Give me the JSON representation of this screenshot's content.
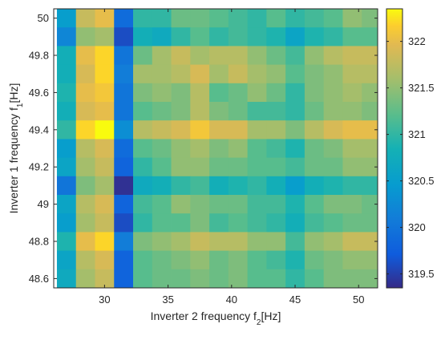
{
  "chart_data": {
    "type": "heatmap",
    "title": "",
    "xlabel": "Inverter 2 frequency f",
    "xlabel_subscript": "2",
    "xlabel_unit": "[Hz]",
    "ylabel": "Inverter 1 frequency f",
    "ylabel_subscript": "1",
    "ylabel_unit": "[Hz]",
    "xlim": [
      26,
      51.5
    ],
    "ylim": [
      48.55,
      50.05
    ],
    "x_ticks": [
      30,
      35,
      40,
      45,
      50
    ],
    "y_ticks": [
      48.6,
      48.8,
      49,
      49.2,
      49.4,
      49.6,
      49.8,
      50
    ],
    "colorbar": {
      "colormap": "parula",
      "range": [
        319.35,
        322.35
      ],
      "ticks": [
        319.5,
        320,
        320.5,
        321,
        321.5,
        322
      ]
    },
    "x_centers": [
      27,
      28.5,
      30,
      31.5,
      33,
      34.5,
      36,
      37.5,
      39,
      40.5,
      42,
      43.5,
      45,
      46.5,
      48,
      49.5,
      51
    ],
    "y_centers": [
      50,
      49.9,
      49.8,
      49.7,
      49.6,
      49.5,
      49.4,
      49.3,
      49.2,
      49.1,
      49,
      48.9,
      48.8,
      48.7,
      48.6
    ],
    "values": [
      [
        320.5,
        321.8,
        322.0,
        319.9,
        321.0,
        321.0,
        321.3,
        321.3,
        321.2,
        321.1,
        321.0,
        321.2,
        321.0,
        321.1,
        321.2,
        321.5,
        321.4
      ],
      [
        320.2,
        321.5,
        321.6,
        319.6,
        320.8,
        320.7,
        321.0,
        321.2,
        321.0,
        321.1,
        321.0,
        320.9,
        320.6,
        320.9,
        321.0,
        321.2,
        321.2
      ],
      [
        320.8,
        322.0,
        322.2,
        320.0,
        321.3,
        321.6,
        321.8,
        321.6,
        321.7,
        321.7,
        321.5,
        321.3,
        321.1,
        321.5,
        321.7,
        321.8,
        321.8
      ],
      [
        320.8,
        321.9,
        322.2,
        320.1,
        321.6,
        321.6,
        321.7,
        321.9,
        321.6,
        321.8,
        321.6,
        321.5,
        321.2,
        321.4,
        321.5,
        321.7,
        321.7
      ],
      [
        320.9,
        322.0,
        322.1,
        320.0,
        321.4,
        321.5,
        321.4,
        321.7,
        321.2,
        321.3,
        321.5,
        321.3,
        321.0,
        321.4,
        321.5,
        321.6,
        321.5
      ],
      [
        320.8,
        321.9,
        322.0,
        320.0,
        321.2,
        321.3,
        321.4,
        321.7,
        321.4,
        321.3,
        321.1,
        321.1,
        321.0,
        321.3,
        321.5,
        321.5,
        321.4
      ],
      [
        321.0,
        322.2,
        322.4,
        320.3,
        321.7,
        321.8,
        321.9,
        322.1,
        321.9,
        321.9,
        321.6,
        321.6,
        321.4,
        321.7,
        321.9,
        322.0,
        322.0
      ],
      [
        320.5,
        321.7,
        321.9,
        319.9,
        321.2,
        321.3,
        321.5,
        321.6,
        321.4,
        321.5,
        321.2,
        321.1,
        320.9,
        321.3,
        321.4,
        321.6,
        321.6
      ],
      [
        320.6,
        321.6,
        321.8,
        319.8,
        321.0,
        321.2,
        321.5,
        321.5,
        321.3,
        321.3,
        321.2,
        321.2,
        321.1,
        321.3,
        321.3,
        321.5,
        321.5
      ],
      [
        320.0,
        321.4,
        321.6,
        319.4,
        320.7,
        320.8,
        321.0,
        321.1,
        320.8,
        320.9,
        321.0,
        320.8,
        320.5,
        320.8,
        320.9,
        321.0,
        321.0
      ],
      [
        320.6,
        321.7,
        321.9,
        319.8,
        321.1,
        321.2,
        321.5,
        321.4,
        321.3,
        321.3,
        321.1,
        321.1,
        320.9,
        321.2,
        321.4,
        321.4,
        321.3
      ],
      [
        320.5,
        321.6,
        321.8,
        319.6,
        321.0,
        321.2,
        321.2,
        321.4,
        321.1,
        321.2,
        321.1,
        321.0,
        320.8,
        321.1,
        321.2,
        321.3,
        321.3
      ],
      [
        320.9,
        322.0,
        322.2,
        320.1,
        321.4,
        321.5,
        321.6,
        321.8,
        321.7,
        321.7,
        321.5,
        321.5,
        321.1,
        321.5,
        321.6,
        321.8,
        321.8
      ],
      [
        320.6,
        321.7,
        321.9,
        319.8,
        321.2,
        321.3,
        321.4,
        321.5,
        321.3,
        321.4,
        321.2,
        321.1,
        320.9,
        321.3,
        321.4,
        321.5,
        321.5
      ],
      [
        320.7,
        321.6,
        321.8,
        319.8,
        321.2,
        321.3,
        321.3,
        321.4,
        321.3,
        321.4,
        321.2,
        321.2,
        321.0,
        321.2,
        321.4,
        321.4,
        321.4
      ]
    ]
  }
}
